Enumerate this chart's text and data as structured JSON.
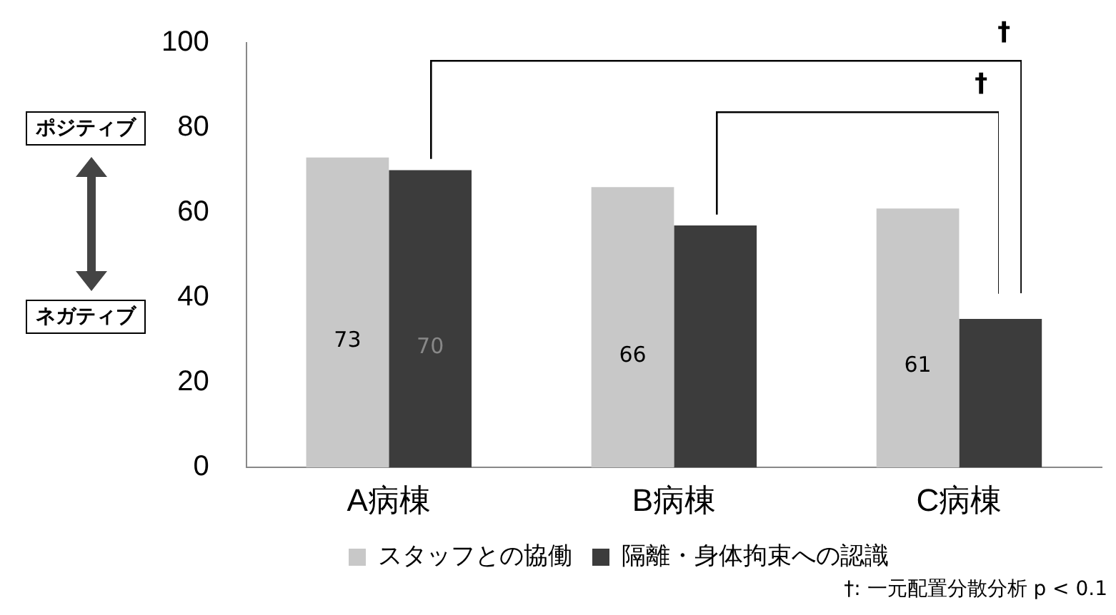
{
  "chart_data": {
    "type": "bar",
    "categories": [
      "A病棟",
      "B病棟",
      "C病棟"
    ],
    "series": [
      {
        "name": "スタッフとの協働",
        "color": "#c8c8c8",
        "values": [
          73,
          66,
          61
        ],
        "value_labels": [
          "73",
          "66",
          "61"
        ]
      },
      {
        "name": "隔離・身体拘束への認識",
        "color": "#3c3c3c",
        "values": [
          70,
          57,
          35
        ],
        "value_labels": [
          "70",
          null,
          null
        ]
      }
    ],
    "ylim": [
      0,
      100
    ],
    "yticks": [
      0,
      20,
      40,
      60,
      80,
      100
    ],
    "grid": false,
    "legend": "bottom",
    "annotations": [
      "†",
      "†",
      "†: 一元配置分散分析 p < 0.1",
      "ポジティブ",
      "ネガティブ"
    ]
  }
}
